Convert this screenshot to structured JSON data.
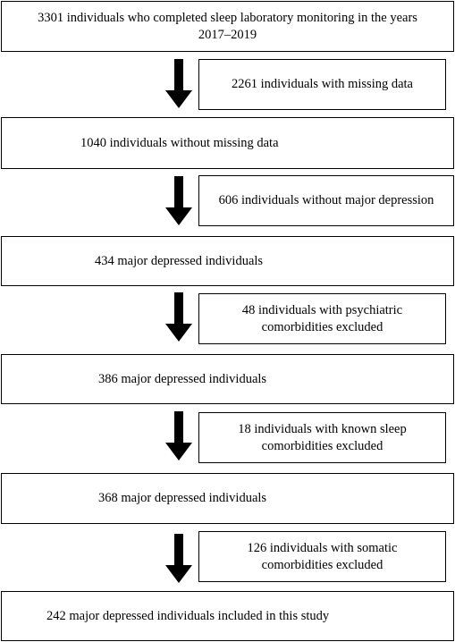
{
  "flow": {
    "steps": [
      {
        "text": "3301 individuals who completed sleep laboratory monitoring in the years\n2017–2019"
      },
      {
        "text": "1040 individuals without missing data"
      },
      {
        "text": "434 major depressed individuals"
      },
      {
        "text": "386 major depressed individuals"
      },
      {
        "text": "368 major depressed individuals"
      },
      {
        "text": "242 major depressed individuals included in this study"
      }
    ],
    "exclusions": [
      {
        "text": "2261 individuals with missing data"
      },
      {
        "text": "606 individuals without major depression"
      },
      {
        "text": "48 individuals with psychiatric\ncomorbidities excluded"
      },
      {
        "text": "18 individuals with known sleep\ncomorbidities excluded"
      },
      {
        "text": "126 individuals with somatic\ncomorbidities excluded"
      }
    ]
  }
}
